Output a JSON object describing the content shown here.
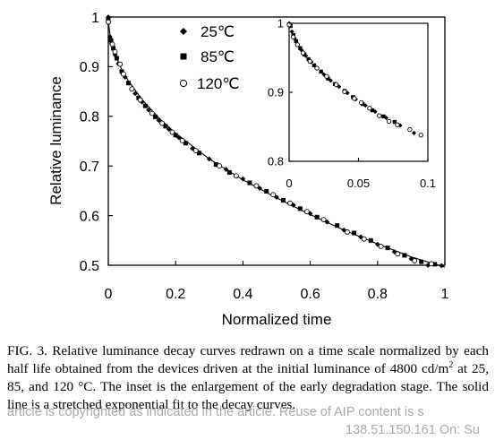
{
  "chart_data": [
    {
      "type": "scatter",
      "title": "",
      "xlabel": "Normalized time",
      "ylabel": "Relative luminance",
      "xlim": [
        0,
        1
      ],
      "ylim": [
        0.5,
        1
      ],
      "xticks": [
        0,
        0.2,
        0.4,
        0.6,
        0.8,
        1
      ],
      "xtick_labels": [
        "0",
        "0.2",
        "0.4",
        "0.6",
        "0.8",
        "1"
      ],
      "yticks": [
        0.5,
        0.6,
        0.7,
        0.8,
        0.9,
        1
      ],
      "ytick_labels": [
        "0.5",
        "0.6",
        "0.7",
        "0.8",
        "0.9",
        "1"
      ],
      "legend_position": "top-left",
      "grid": false,
      "series": [
        {
          "name": "25℃",
          "marker": "diamond",
          "x": [
            0.0,
            0.005,
            0.01,
            0.02,
            0.03,
            0.05,
            0.08,
            0.1,
            0.12,
            0.15,
            0.18,
            0.21,
            0.25,
            0.3,
            0.35,
            0.4,
            0.45,
            0.5,
            0.55,
            0.6,
            0.65,
            0.7,
            0.75,
            0.8,
            0.85,
            0.9,
            0.95,
            0.99
          ],
          "y": [
            1.0,
            0.96,
            0.946,
            0.924,
            0.906,
            0.879,
            0.846,
            0.829,
            0.813,
            0.792,
            0.774,
            0.757,
            0.735,
            0.714,
            0.693,
            0.674,
            0.655,
            0.637,
            0.621,
            0.604,
            0.587,
            0.571,
            0.557,
            0.542,
            0.527,
            0.513,
            0.5,
            0.499
          ]
        },
        {
          "name": "85℃",
          "marker": "square",
          "x": [
            0.0,
            0.008,
            0.015,
            0.025,
            0.04,
            0.06,
            0.09,
            0.11,
            0.14,
            0.17,
            0.2,
            0.23,
            0.27,
            0.32,
            0.36,
            0.42,
            0.47,
            0.52,
            0.57,
            0.62,
            0.68,
            0.73,
            0.78,
            0.83,
            0.88,
            0.93,
            0.97
          ],
          "y": [
            0.995,
            0.953,
            0.937,
            0.917,
            0.89,
            0.867,
            0.837,
            0.821,
            0.799,
            0.78,
            0.762,
            0.746,
            0.726,
            0.703,
            0.687,
            0.666,
            0.649,
            0.631,
            0.614,
            0.597,
            0.58,
            0.565,
            0.55,
            0.535,
            0.52,
            0.507,
            0.502
          ]
        },
        {
          "name": "120℃",
          "marker": "circle",
          "x": [
            0.0,
            0.012,
            0.02,
            0.035,
            0.045,
            0.07,
            0.095,
            0.13,
            0.16,
            0.19,
            0.22,
            0.26,
            0.33,
            0.38,
            0.44,
            0.49,
            0.54,
            0.59,
            0.64,
            0.71,
            0.76,
            0.81,
            0.86,
            0.91,
            0.96
          ],
          "y": [
            0.99,
            0.945,
            0.93,
            0.905,
            0.885,
            0.855,
            0.833,
            0.806,
            0.786,
            0.768,
            0.751,
            0.731,
            0.7,
            0.68,
            0.66,
            0.642,
            0.625,
            0.608,
            0.592,
            0.567,
            0.553,
            0.538,
            0.523,
            0.509,
            0.503
          ]
        },
        {
          "name": "stretched exponential fit",
          "marker": "line",
          "x": [
            0.0,
            0.002,
            0.005,
            0.01,
            0.02,
            0.04,
            0.06,
            0.1,
            0.15,
            0.2,
            0.3,
            0.4,
            0.5,
            0.6,
            0.7,
            0.8,
            0.9,
            1.0
          ],
          "y": [
            1.0,
            0.98,
            0.965,
            0.947,
            0.924,
            0.894,
            0.871,
            0.834,
            0.797,
            0.766,
            0.714,
            0.672,
            0.636,
            0.602,
            0.571,
            0.543,
            0.517,
            0.496
          ]
        }
      ]
    },
    {
      "type": "scatter",
      "title": "",
      "xlabel": "",
      "ylabel": "",
      "xlim": [
        0,
        0.1
      ],
      "ylim": [
        0.8,
        1
      ],
      "xticks": [
        0,
        0.05,
        0.1
      ],
      "xtick_labels": [
        "0",
        "0.05",
        "0.1"
      ],
      "yticks": [
        0.8,
        0.9,
        1
      ],
      "ytick_labels": [
        "0.8",
        "0.9",
        "1"
      ],
      "grid": false,
      "series": [
        {
          "name": "25℃",
          "marker": "diamond",
          "x": [
            0.0,
            0.002,
            0.004,
            0.006,
            0.009,
            0.012,
            0.016,
            0.02,
            0.025,
            0.03,
            0.036,
            0.042,
            0.048,
            0.055,
            0.062,
            0.07,
            0.08,
            0.09
          ],
          "y": [
            1.0,
            0.988,
            0.978,
            0.97,
            0.961,
            0.953,
            0.944,
            0.935,
            0.926,
            0.917,
            0.908,
            0.899,
            0.89,
            0.881,
            0.872,
            0.863,
            0.852,
            0.841
          ]
        },
        {
          "name": "85℃",
          "marker": "square",
          "x": [
            0.001,
            0.003,
            0.005,
            0.008,
            0.011,
            0.014,
            0.018,
            0.023,
            0.028,
            0.033,
            0.04,
            0.046,
            0.053,
            0.06,
            0.068,
            0.076
          ],
          "y": [
            0.996,
            0.983,
            0.974,
            0.964,
            0.955,
            0.948,
            0.939,
            0.93,
            0.92,
            0.912,
            0.902,
            0.893,
            0.883,
            0.874,
            0.865,
            0.857
          ]
        },
        {
          "name": "120℃",
          "marker": "circle",
          "x": [
            0.0,
            0.003,
            0.006,
            0.01,
            0.015,
            0.02,
            0.027,
            0.034,
            0.04,
            0.047,
            0.052,
            0.058,
            0.065,
            0.072,
            0.078,
            0.087,
            0.095
          ],
          "y": [
            0.998,
            0.98,
            0.969,
            0.957,
            0.945,
            0.935,
            0.923,
            0.911,
            0.901,
            0.891,
            0.885,
            0.877,
            0.866,
            0.858,
            0.853,
            0.846,
            0.838
          ]
        }
      ]
    }
  ],
  "legend": {
    "entries": [
      "25℃",
      "85℃",
      "120℃"
    ]
  },
  "caption": {
    "label": "FIG. 3.",
    "text_a": "Relative luminance decay curves redrawn on a time scale normalized by each half life obtained from the devices driven at the initial luminance of 4800 cd/m",
    "superscript": "2",
    "text_b": " at 25, 85, and 120 °C. The inset is the enlargement of the early degradation stage. The solid line is a stretched exponential fit to the decay curves."
  },
  "watermark": {
    "line1": "article is copyrighted as indicated in the article. Reuse of AIP content is s",
    "line2": "138.51.150.161 On: Su"
  }
}
